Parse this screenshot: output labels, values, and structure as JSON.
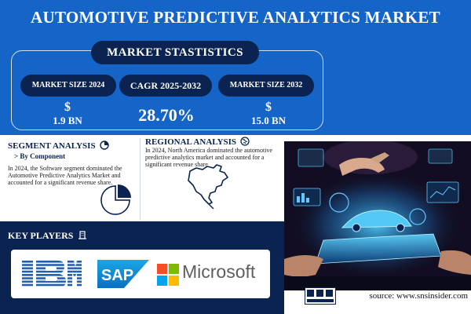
{
  "title": "AUTOMOTIVE PREDICTIVE ANALYTICS MARKET",
  "stats": {
    "heading": "MARKET STASTISTICS",
    "market_size_2024_label": "MARKET SIZE 2024",
    "cagr_label": "CAGR 2025-2032",
    "market_size_2032_label": "MARKET SIZE 2032",
    "currency_symbol": "$",
    "market_size_2024_value": "1.9 BN",
    "cagr_value": "28.70%",
    "market_size_2032_value": "15.0 BN"
  },
  "segment": {
    "heading": "SEGMENT ANALYSIS",
    "subheading": "> By Component",
    "text": "In 2024, the Software segment dominated the Automotive Predictive Analytics Market and accounted for a significant revenue share.",
    "icon": "pie-chart-icon"
  },
  "regional": {
    "heading": "REGIONAL ANALYSIS",
    "text": "In 2024, North America dominated the automotive predictive analytics market and accounted for a significant revenue share",
    "icon": "globe-icon"
  },
  "key_players": {
    "heading": "KEY PLAYERS",
    "icon": "building-icon",
    "logos": [
      "IBM",
      "SAP",
      "Microsoft"
    ]
  },
  "source": "source: www.snsinsider.com",
  "colors": {
    "primary_blue": "#1565c8",
    "navy": "#0b2350",
    "white": "#ffffff"
  }
}
